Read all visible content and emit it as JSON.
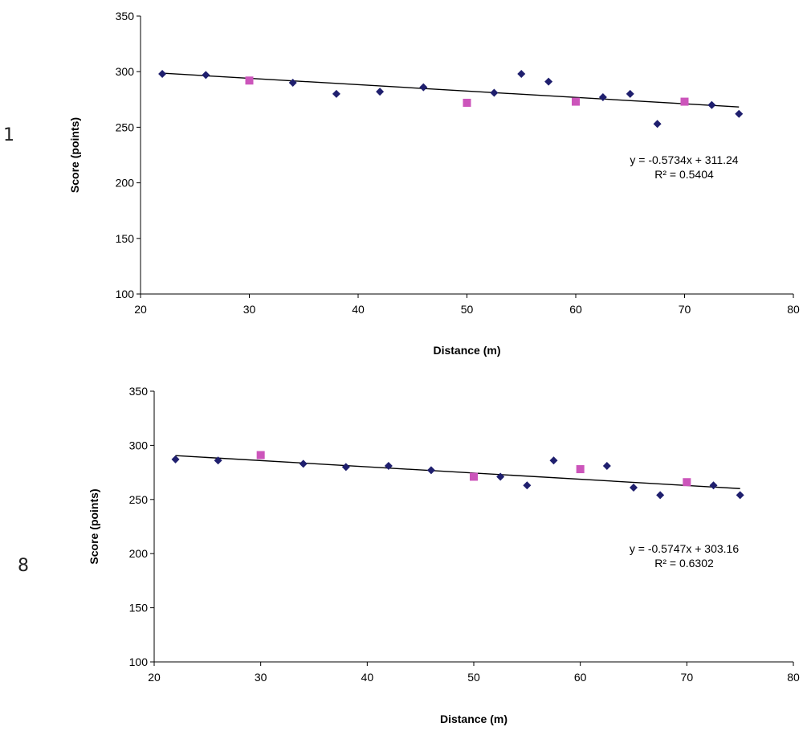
{
  "chart_data": [
    {
      "type": "scatter",
      "panel_label": "1",
      "title": "",
      "xlabel": "Distance (m)",
      "ylabel": "Score (points)",
      "xlim": [
        20,
        80
      ],
      "ylim": [
        100,
        350
      ],
      "xticks": [
        "20",
        "30",
        "40",
        "50",
        "60",
        "70",
        "80"
      ],
      "yticks": [
        "100",
        "150",
        "200",
        "250",
        "300",
        "350"
      ],
      "series": [
        {
          "name": "diamond",
          "color": "#1f1f6e",
          "marker": "diamond",
          "points": [
            [
              22,
              298
            ],
            [
              26,
              297
            ],
            [
              34,
              290
            ],
            [
              38,
              280
            ],
            [
              42,
              282
            ],
            [
              46,
              286
            ],
            [
              52.5,
              281
            ],
            [
              55,
              298
            ],
            [
              57.5,
              291
            ],
            [
              62.5,
              277
            ],
            [
              65,
              280
            ],
            [
              67.5,
              253
            ],
            [
              72.5,
              270
            ],
            [
              75,
              262
            ]
          ]
        },
        {
          "name": "square",
          "color": "#cc55bb",
          "marker": "square",
          "points": [
            [
              30,
              292
            ],
            [
              50,
              272
            ],
            [
              60,
              273
            ],
            [
              70,
              273
            ]
          ]
        }
      ],
      "trendline": {
        "slope": -0.5734,
        "intercept": 311.24,
        "x_range": [
          22,
          75
        ]
      },
      "equation": "y = -0.5734x + 311.24",
      "r2": "R² = 0.5404"
    },
    {
      "type": "scatter",
      "panel_label": "8",
      "title": "",
      "xlabel": "Distance (m)",
      "ylabel": "Score (points)",
      "xlim": [
        20,
        80
      ],
      "ylim": [
        100,
        350
      ],
      "xticks": [
        "20",
        "30",
        "40",
        "50",
        "60",
        "70",
        "80"
      ],
      "yticks": [
        "100",
        "150",
        "200",
        "250",
        "300",
        "350"
      ],
      "series": [
        {
          "name": "diamond",
          "color": "#1f1f6e",
          "marker": "diamond",
          "points": [
            [
              22,
              287
            ],
            [
              26,
              286
            ],
            [
              34,
              283
            ],
            [
              38,
              280
            ],
            [
              42,
              281
            ],
            [
              46,
              277
            ],
            [
              52.5,
              271
            ],
            [
              55,
              263
            ],
            [
              57.5,
              286
            ],
            [
              62.5,
              281
            ],
            [
              65,
              261
            ],
            [
              67.5,
              254
            ],
            [
              72.5,
              263
            ],
            [
              75,
              254
            ]
          ]
        },
        {
          "name": "square",
          "color": "#cc55bb",
          "marker": "square",
          "points": [
            [
              30,
              291
            ],
            [
              50,
              271
            ],
            [
              60,
              278
            ],
            [
              70,
              266
            ]
          ]
        }
      ],
      "trendline": {
        "slope": -0.5747,
        "intercept": 303.16,
        "x_range": [
          22,
          75
        ]
      },
      "equation": "y = -0.5747x + 303.16",
      "r2": "R² = 0.6302"
    }
  ]
}
